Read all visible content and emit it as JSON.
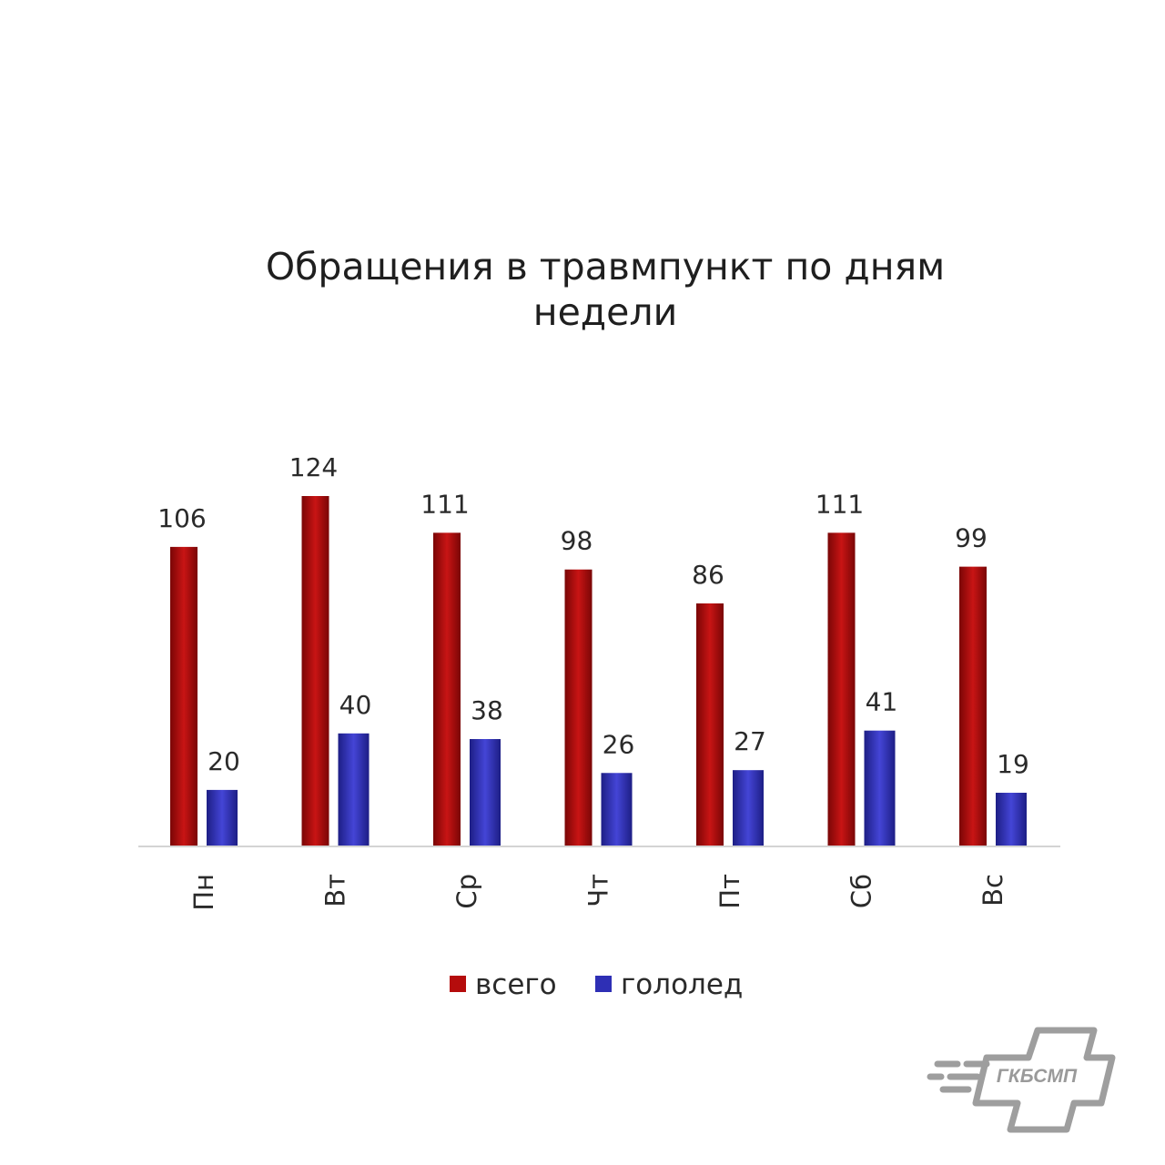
{
  "chart_data": {
    "type": "bar",
    "title_lines": [
      "Обращения в травмпункт по дням",
      "недели"
    ],
    "categories": [
      "Пн",
      "Вт",
      "Ср",
      "Чт",
      "Пт",
      "Сб",
      "Вс"
    ],
    "series": [
      {
        "name": "всего",
        "values": [
          106,
          124,
          111,
          98,
          86,
          111,
          99
        ],
        "color": "#b50c0c"
      },
      {
        "name": "гололед",
        "values": [
          20,
          40,
          38,
          26,
          27,
          41,
          19
        ],
        "color": "#2e2fb5"
      }
    ],
    "ylim": [
      0,
      124
    ],
    "legend_position": "bottom",
    "grid": false
  },
  "logo": {
    "text": "ГКБСМП",
    "color": "#9a9a9a"
  }
}
